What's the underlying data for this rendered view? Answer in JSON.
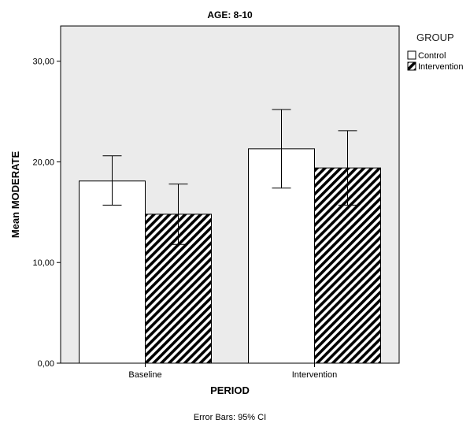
{
  "chart_data": {
    "type": "bar",
    "title": "AGE: 8-10",
    "xlabel": "PERIOD",
    "ylabel": "Mean MODERATE",
    "categories": [
      "Baseline",
      "Intervention"
    ],
    "ylim": [
      0,
      33.5
    ],
    "yticks": [
      0,
      10,
      20,
      30
    ],
    "ytick_labels": [
      "0,00",
      "10,00",
      "20,00",
      "30,00"
    ],
    "grid": false,
    "legend": {
      "title": "GROUP",
      "position": "top-right"
    },
    "series": [
      {
        "name": "Control",
        "fill": "#ffffff",
        "pattern": "none",
        "values": [
          18.1,
          21.3
        ],
        "ci_low": [
          15.7,
          17.4
        ],
        "ci_high": [
          20.6,
          25.2
        ]
      },
      {
        "name": "Intervention",
        "fill": "#000000",
        "pattern": "diagonal-hatch",
        "values": [
          14.8,
          19.4
        ],
        "ci_low": [
          11.8,
          15.7
        ],
        "ci_high": [
          17.8,
          23.1
        ]
      }
    ],
    "footnote": "Error Bars: 95% CI"
  },
  "colors": {
    "plot_background": "#ebebeb",
    "bar_stroke": "#000000"
  }
}
